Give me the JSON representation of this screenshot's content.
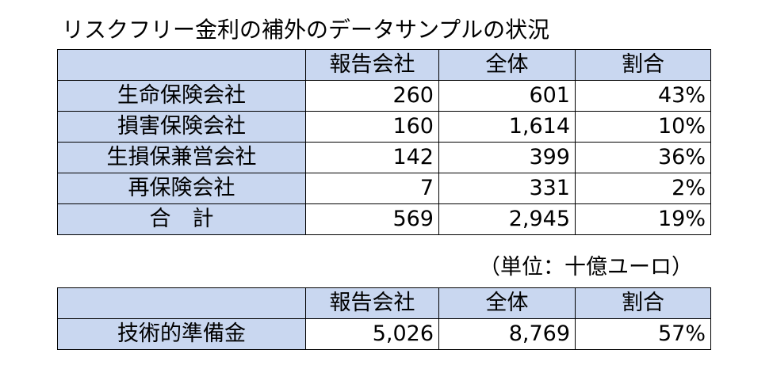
{
  "title": "リスクフリー金利の補外のデータサンプルの状況",
  "table1": {
    "headers": [
      "",
      "報告会社",
      "全体",
      "割合"
    ],
    "rows": [
      [
        "生命保険会社",
        "260",
        "601",
        "43%"
      ],
      [
        "損害保険会社",
        "160",
        "1,614",
        "10%"
      ],
      [
        "生損保兼営会社",
        "142",
        "399",
        "36%"
      ],
      [
        "再保険会社",
        "7",
        "331",
        "2%"
      ],
      [
        "合　計",
        "569",
        "2,945",
        "19%"
      ]
    ]
  },
  "unit_note": "（単位：十億ユーロ）",
  "table2": {
    "headers": [
      "",
      "報告会社",
      "全体",
      "割合"
    ],
    "rows": [
      [
        "技術的準備金",
        "5,026",
        "8,769",
        "57%"
      ]
    ]
  },
  "colors": {
    "header_fill": "#c9d7f0",
    "cell_fill": "#ffffff",
    "border": "#000000"
  }
}
